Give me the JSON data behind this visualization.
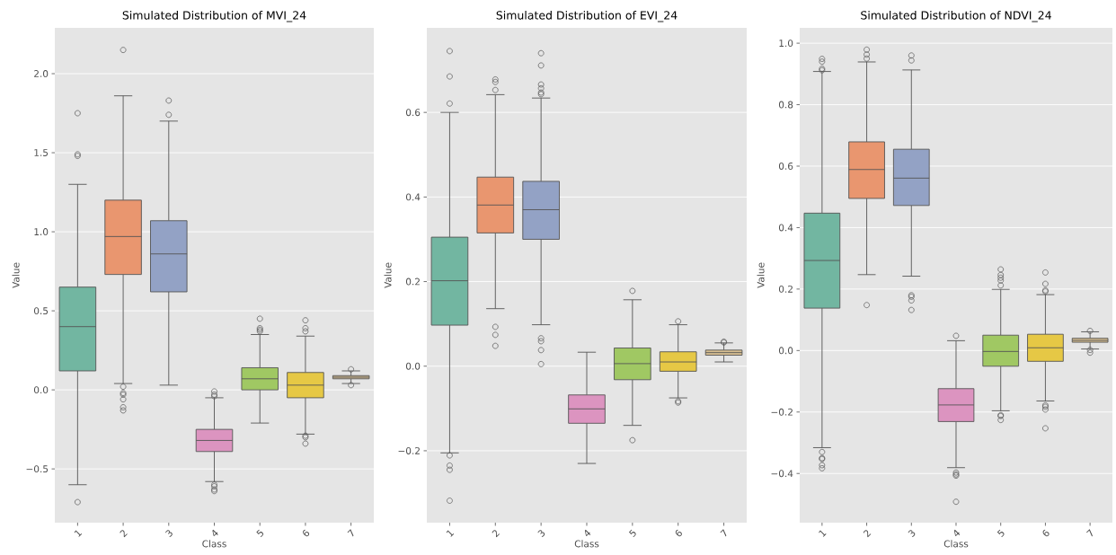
{
  "chart_data": [
    {
      "type": "box",
      "title": "Simulated Distribution of MVI_24",
      "xlabel": "Class",
      "ylabel": "Value",
      "categories": [
        "1",
        "2",
        "3",
        "4",
        "5",
        "6",
        "7"
      ],
      "colors": [
        "#72b6a1",
        "#e9966f",
        "#93a2c5",
        "#dc94c0",
        "#a0c863",
        "#e6c845",
        "#d7bf92"
      ],
      "boxes": [
        {
          "low": -0.6,
          "q1": 0.12,
          "median": 0.4,
          "q3": 0.65,
          "high": 1.3,
          "outliers": [
            1.75,
            1.49,
            1.48,
            -0.71
          ]
        },
        {
          "low": 0.04,
          "q1": 0.73,
          "median": 0.97,
          "q3": 1.2,
          "high": 1.86,
          "outliers": [
            2.15,
            0.02,
            -0.02,
            -0.03,
            -0.06,
            -0.11,
            -0.13
          ]
        },
        {
          "low": 0.03,
          "q1": 0.62,
          "median": 0.86,
          "q3": 1.07,
          "high": 1.7,
          "outliers": [
            1.83,
            1.74
          ]
        },
        {
          "low": -0.58,
          "q1": -0.39,
          "median": -0.32,
          "q3": -0.25,
          "high": -0.05,
          "outliers": [
            -0.01,
            -0.03,
            -0.04,
            -0.6,
            -0.61,
            -0.63,
            -0.64
          ]
        },
        {
          "low": -0.21,
          "q1": 0.0,
          "median": 0.07,
          "q3": 0.14,
          "high": 0.35,
          "outliers": [
            0.45,
            0.39,
            0.38,
            0.37
          ]
        },
        {
          "low": -0.28,
          "q1": -0.05,
          "median": 0.03,
          "q3": 0.11,
          "high": 0.34,
          "outliers": [
            0.44,
            0.39,
            0.37,
            -0.29,
            -0.3,
            -0.34
          ]
        },
        {
          "low": 0.04,
          "q1": 0.07,
          "median": 0.08,
          "q3": 0.09,
          "high": 0.12,
          "outliers": [
            0.13,
            0.03
          ]
        }
      ],
      "ylim": [
        -0.84,
        2.29
      ],
      "yticks": [
        {
          "value": -0.5,
          "label": "−0.5"
        },
        {
          "value": 0,
          "label": "0.0"
        },
        {
          "value": 0.5,
          "label": "0.5"
        },
        {
          "value": 1,
          "label": "1.0"
        },
        {
          "value": 1.5,
          "label": "1.5"
        },
        {
          "value": 2,
          "label": "2.0"
        }
      ],
      "grid": "y"
    },
    {
      "type": "box",
      "title": "Simulated Distribution of EVI_24",
      "xlabel": "Class",
      "ylabel": "Value",
      "categories": [
        "1",
        "2",
        "3",
        "4",
        "5",
        "6",
        "7"
      ],
      "colors": [
        "#72b6a1",
        "#e9966f",
        "#93a2c5",
        "#dc94c0",
        "#a0c863",
        "#e6c845",
        "#d7bf92"
      ],
      "boxes": [
        {
          "low": -0.205,
          "q1": 0.097,
          "median": 0.202,
          "q3": 0.305,
          "high": 0.6,
          "outliers": [
            0.745,
            0.685,
            0.621,
            -0.211,
            -0.235,
            -0.245,
            -0.318
          ]
        },
        {
          "low": 0.136,
          "q1": 0.315,
          "median": 0.381,
          "q3": 0.447,
          "high": 0.642,
          "outliers": [
            0.678,
            0.672,
            0.653,
            0.093,
            0.074,
            0.048
          ]
        },
        {
          "low": 0.098,
          "q1": 0.3,
          "median": 0.37,
          "q3": 0.437,
          "high": 0.634,
          "outliers": [
            0.74,
            0.711,
            0.666,
            0.657,
            0.647,
            0.643,
            0.066,
            0.059,
            0.038,
            0.005
          ]
        },
        {
          "low": -0.23,
          "q1": -0.135,
          "median": -0.101,
          "q3": -0.068,
          "high": 0.033
        },
        {
          "low": -0.14,
          "q1": -0.032,
          "median": 0.006,
          "q3": 0.043,
          "high": 0.157,
          "outliers": [
            0.178,
            -0.175
          ]
        },
        {
          "low": -0.075,
          "q1": -0.012,
          "median": 0.01,
          "q3": 0.034,
          "high": 0.098,
          "outliers": [
            0.106,
            -0.083,
            -0.086
          ]
        },
        {
          "low": 0.01,
          "q1": 0.026,
          "median": 0.032,
          "q3": 0.038,
          "high": 0.055,
          "outliers": [
            0.058,
            0.056
          ]
        }
      ],
      "ylim": [
        -0.37,
        0.8
      ],
      "yticks": [
        {
          "value": -0.2,
          "label": "−0.2"
        },
        {
          "value": 0,
          "label": "0.0"
        },
        {
          "value": 0.2,
          "label": "0.2"
        },
        {
          "value": 0.4,
          "label": "0.4"
        },
        {
          "value": 0.6,
          "label": "0.6"
        }
      ],
      "grid": "y"
    },
    {
      "type": "box",
      "title": "Simulated Distribution of NDVI_24",
      "xlabel": "Class",
      "ylabel": "Value",
      "categories": [
        "1",
        "2",
        "3",
        "4",
        "5",
        "6",
        "7"
      ],
      "colors": [
        "#72b6a1",
        "#e9966f",
        "#93a2c5",
        "#dc94c0",
        "#a0c863",
        "#e6c845",
        "#d7bf92"
      ],
      "boxes": [
        {
          "low": -0.316,
          "q1": 0.138,
          "median": 0.293,
          "q3": 0.447,
          "high": 0.908,
          "outliers": [
            0.949,
            0.94,
            0.917,
            0.912,
            -0.33,
            -0.35,
            -0.353,
            -0.373,
            -0.383
          ]
        },
        {
          "low": 0.247,
          "q1": 0.495,
          "median": 0.589,
          "q3": 0.679,
          "high": 0.939,
          "outliers": [
            0.979,
            0.963,
            0.95,
            0.148
          ]
        },
        {
          "low": 0.242,
          "q1": 0.472,
          "median": 0.561,
          "q3": 0.655,
          "high": 0.913,
          "outliers": [
            0.96,
            0.944,
            0.18,
            0.175,
            0.163,
            0.132
          ]
        },
        {
          "low": -0.381,
          "q1": -0.231,
          "median": -0.177,
          "q3": -0.124,
          "high": 0.032,
          "outliers": [
            0.048,
            -0.397,
            -0.403,
            -0.407,
            -0.492
          ]
        },
        {
          "low": -0.196,
          "q1": -0.051,
          "median": -0.003,
          "q3": 0.05,
          "high": 0.199,
          "outliers": [
            0.264,
            0.246,
            0.237,
            0.228,
            0.212,
            -0.21,
            -0.213,
            -0.226
          ]
        },
        {
          "low": -0.164,
          "q1": -0.035,
          "median": 0.009,
          "q3": 0.053,
          "high": 0.182,
          "outliers": [
            0.254,
            0.217,
            0.196,
            0.192,
            -0.178,
            -0.183,
            -0.192,
            -0.253
          ]
        },
        {
          "low": 0.005,
          "q1": 0.027,
          "median": 0.033,
          "q3": 0.04,
          "high": 0.061,
          "outliers": [
            0.064,
            0.002,
            -0.007
          ]
        }
      ],
      "ylim": [
        -0.56,
        1.05
      ],
      "yticks": [
        {
          "value": -0.4,
          "label": "−0.4"
        },
        {
          "value": -0.2,
          "label": "−0.2"
        },
        {
          "value": 0,
          "label": "0.0"
        },
        {
          "value": 0.2,
          "label": "0.2"
        },
        {
          "value": 0.4,
          "label": "0.4"
        },
        {
          "value": 0.6,
          "label": "0.6"
        },
        {
          "value": 0.8,
          "label": "0.8"
        },
        {
          "value": 1,
          "label": "1.0"
        }
      ],
      "grid": "y"
    }
  ]
}
